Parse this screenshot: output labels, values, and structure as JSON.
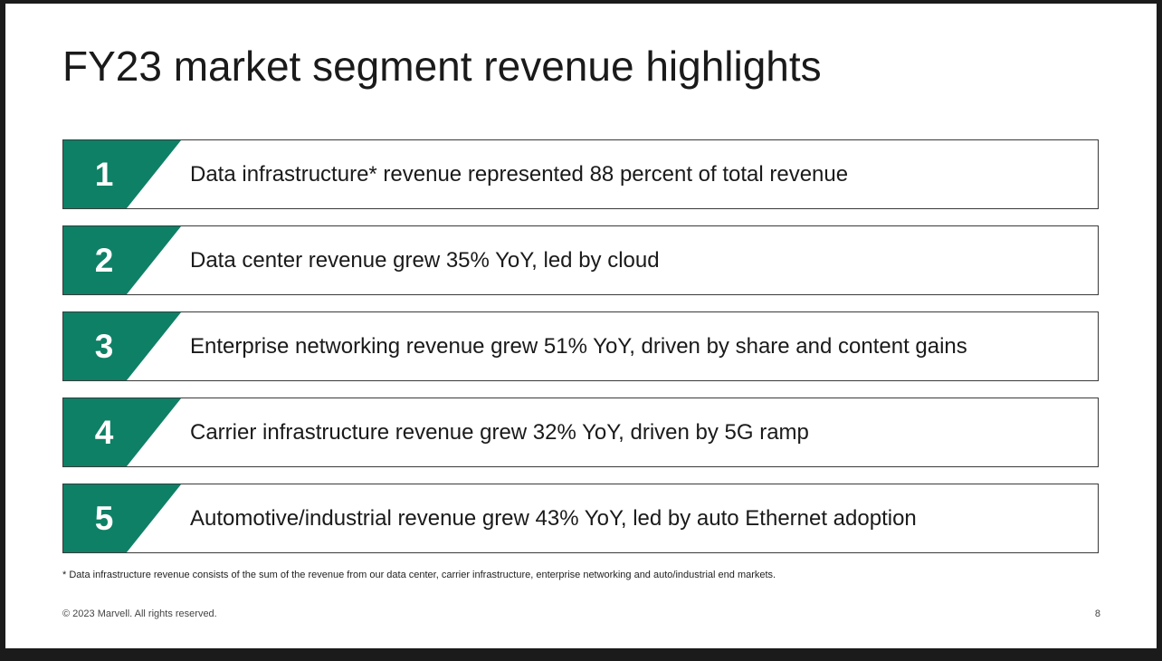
{
  "slide": {
    "title": "FY23 market segment revenue highlights",
    "accent_color": "#0e8066",
    "highlights": [
      {
        "number": "1",
        "text": "Data infrastructure* revenue represented 88 percent of total revenue"
      },
      {
        "number": "2",
        "text": "Data center revenue grew 35% YoY, led by cloud"
      },
      {
        "number": "3",
        "text": "Enterprise networking revenue grew 51% YoY, driven by share and content gains"
      },
      {
        "number": "4",
        "text": "Carrier infrastructure revenue grew 32% YoY, driven by 5G ramp"
      },
      {
        "number": "5",
        "text": "Automotive/industrial revenue grew 43% YoY, led by auto Ethernet adoption"
      }
    ],
    "footnote": "* Data infrastructure revenue consists of the sum of the revenue from our data center, carrier infrastructure, enterprise networking and auto/industrial end markets.",
    "copyright": "© 2023 Marvell. All rights reserved.",
    "page_number": "8"
  }
}
